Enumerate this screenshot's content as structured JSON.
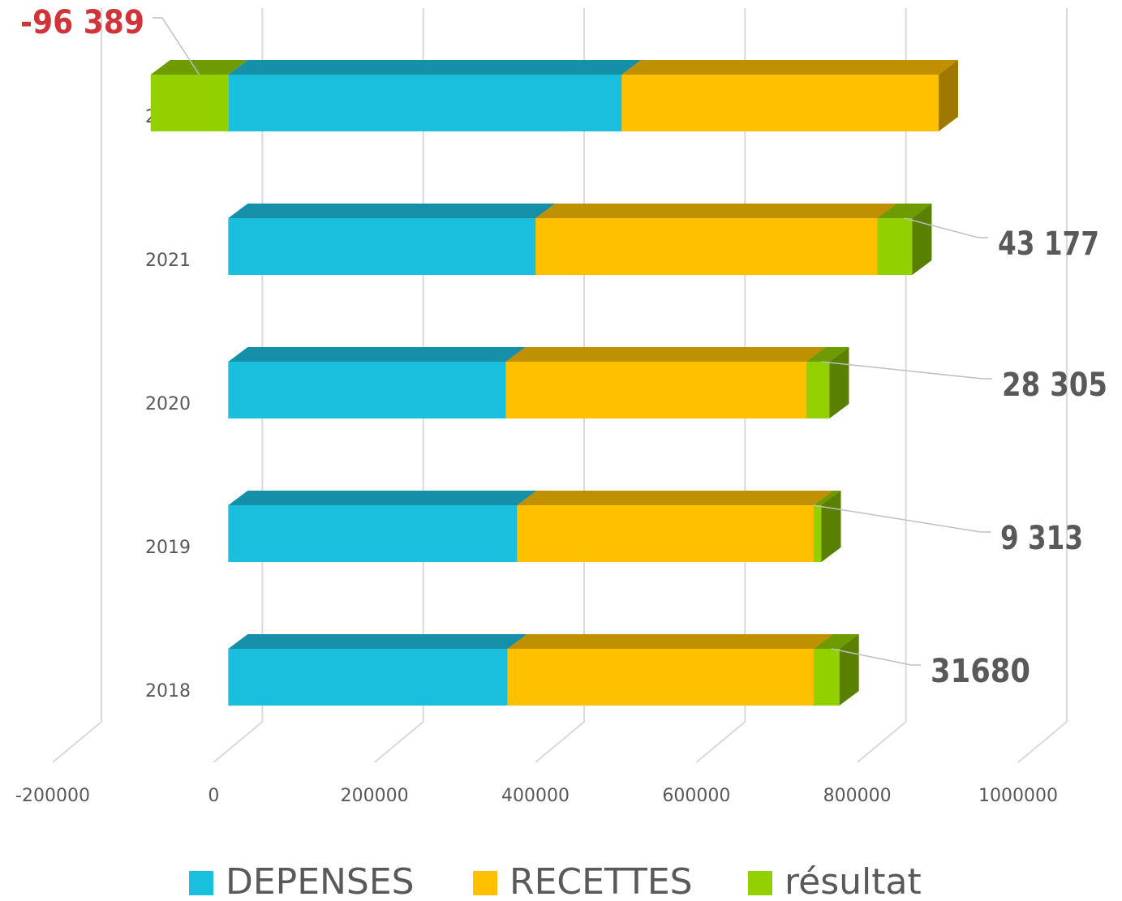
{
  "chart_data": {
    "type": "bar3d_stacked_horizontal",
    "categories": [
      "2018",
      "2019",
      "2020",
      "2021",
      "2022"
    ],
    "series": [
      {
        "name": "DEPENSES",
        "color": "#1bbfde",
        "top_color": "#1590a8",
        "side_color": "#117a8f",
        "values": [
          347000,
          359000,
          345000,
          382000,
          489000
        ]
      },
      {
        "name": "RECETTES",
        "color": "#ffc000",
        "top_color": "#bf9000",
        "side_color": "#a07800",
        "values": [
          381000,
          369000,
          374000,
          425000,
          394000
        ]
      },
      {
        "name": "résultat",
        "color": "#92d000",
        "top_color": "#6e9c00",
        "side_color": "#5a8000",
        "values": [
          31680,
          9313,
          28305,
          43177,
          -96389
        ],
        "value_labels": [
          "31680",
          "9 313",
          "28 305",
          "43 177",
          "-96 389"
        ]
      }
    ],
    "label_color": "#595959",
    "negative_label_color": "#d13438",
    "xlim": [
      -200000,
      1000000
    ],
    "xticks": [
      -200000,
      0,
      200000,
      400000,
      600000,
      800000,
      1000000
    ],
    "grid": true,
    "legend": "bottom"
  }
}
